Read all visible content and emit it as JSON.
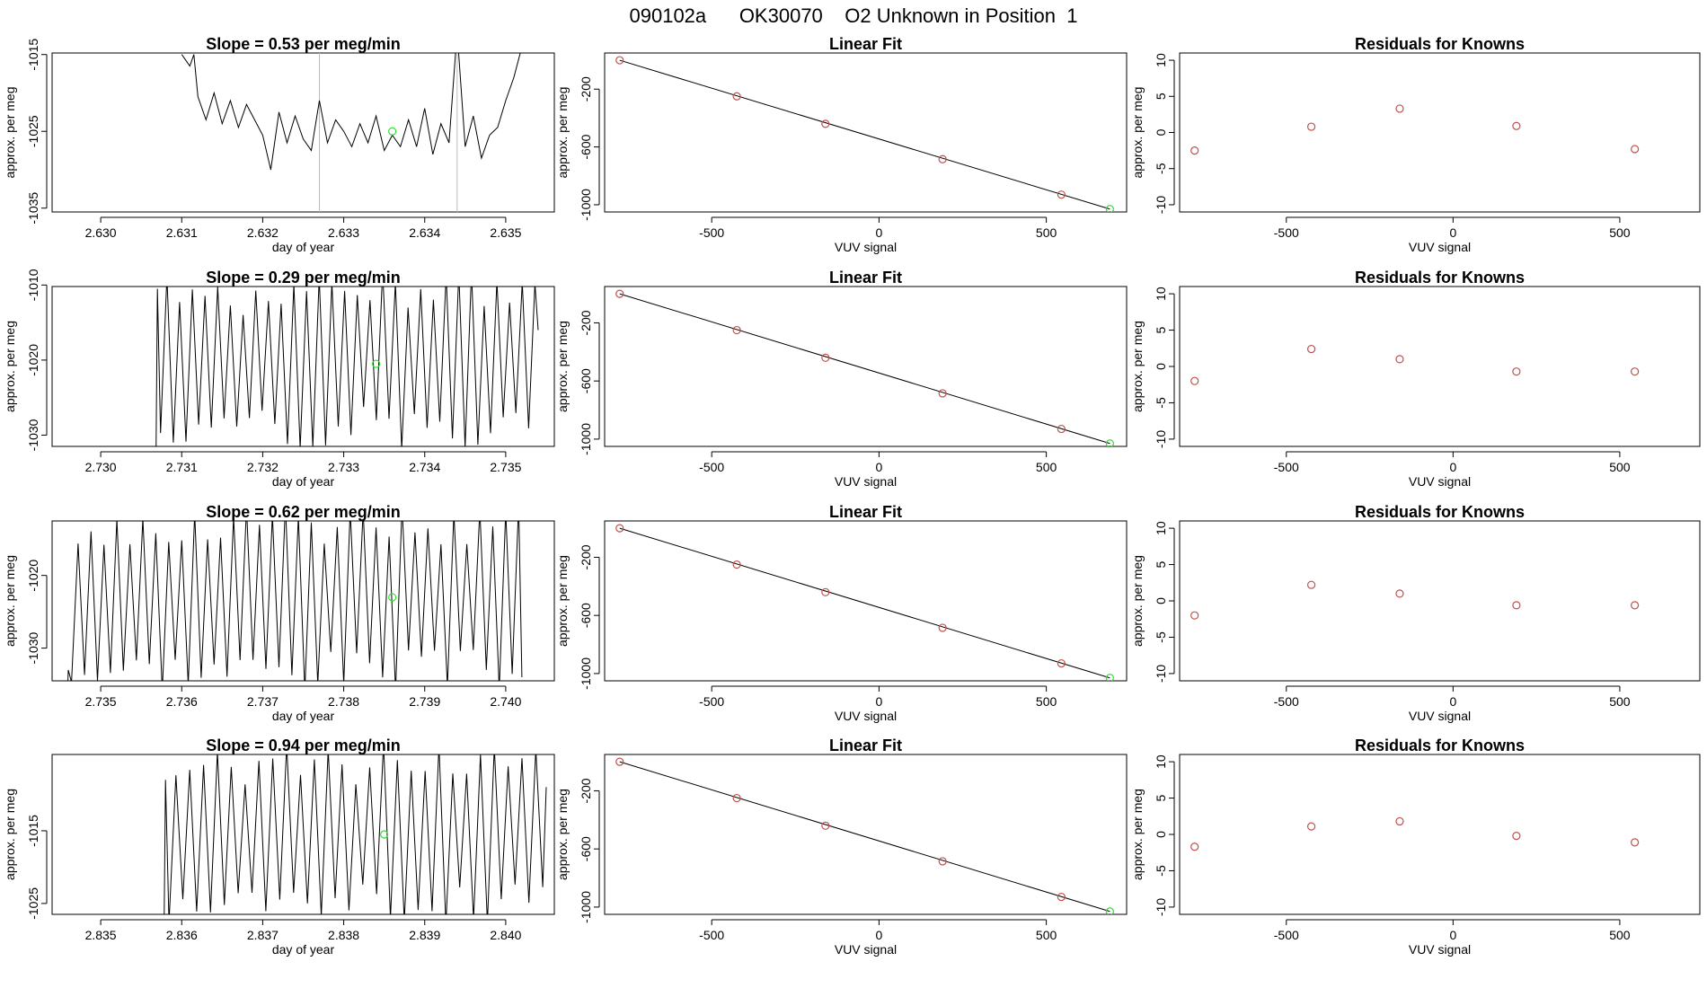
{
  "page_title": "090102a      OK30070    O2 Unknown in Position  1",
  "colors": {
    "ink": "#000000",
    "known": "#c0504d",
    "unknown": "#33dd33",
    "guide": "#bbbbbb"
  },
  "chart_data": [
    {
      "type": "line",
      "row": 1,
      "panel": "trace",
      "title": "Slope =  0.53  per meg/min",
      "xlabel": "day of year",
      "ylabel": "approx. per meg",
      "xlim": [
        2.6294,
        2.6356
      ],
      "ylim": [
        -1035.5,
        -1014.8
      ],
      "xticks": [
        2.63,
        2.631,
        2.632,
        2.633,
        2.634,
        2.635
      ],
      "xtick_labels": [
        "2.630",
        "2.631",
        "2.632",
        "2.633",
        "2.634",
        "2.635"
      ],
      "yticks": [
        -1015,
        -1025,
        -1035
      ],
      "ytick_labels": [
        "-1015",
        "-1025",
        "-1035"
      ],
      "vlines": [
        2.6327,
        2.6344
      ],
      "x": [
        2.631,
        2.6311,
        2.63115,
        2.6312,
        2.6313,
        2.6314,
        2.6315,
        2.6316,
        2.6317,
        2.6318,
        2.6319,
        2.632,
        2.6321,
        2.6322,
        2.6323,
        2.6324,
        2.6325,
        2.6326,
        2.6327,
        2.6328,
        2.6329,
        2.633,
        2.6331,
        2.6332,
        2.6333,
        2.6334,
        2.6335,
        2.6336,
        2.6337,
        2.6338,
        2.6339,
        2.634,
        2.6341,
        2.6342,
        2.6343,
        2.6344,
        2.6345,
        2.6346,
        2.6347,
        2.6348,
        2.6349,
        2.635,
        2.6351,
        2.6352
      ],
      "y": [
        -1015.0,
        -1016.5,
        -1015.0,
        -1020.5,
        -1023.5,
        -1020.0,
        -1024.0,
        -1021.0,
        -1024.5,
        -1021.5,
        -1023.5,
        -1025.5,
        -1030.0,
        -1022.5,
        -1026.5,
        -1023.0,
        -1026.0,
        -1027.5,
        -1021.0,
        -1026.5,
        -1023.5,
        -1025.0,
        -1027.0,
        -1024.0,
        -1026.5,
        -1023.0,
        -1027.5,
        -1025.5,
        -1027.0,
        -1023.5,
        -1027.0,
        -1022.0,
        -1028.0,
        -1024.0,
        -1026.5,
        -1012.0,
        -1027.0,
        -1023.0,
        -1028.5,
        -1025.5,
        -1024.5,
        -1021.0,
        -1018.0,
        -1014.0
      ],
      "highlight": [
        2.6336,
        -1025.0
      ]
    },
    {
      "type": "scatter",
      "row": 1,
      "panel": "fit",
      "title": "Linear Fit",
      "xlabel": "VUV signal",
      "ylabel": "approx. per meg",
      "xlim": [
        -820,
        740
      ],
      "ylim": [
        -1050,
        50
      ],
      "xticks": [
        -500,
        0,
        500
      ],
      "xtick_labels": [
        "-500",
        "0",
        "500"
      ],
      "yticks": [
        -200,
        -600,
        -1000
      ],
      "ytick_labels": [
        "-200",
        "-600",
        "-1000"
      ],
      "line": [
        [
          -775,
          0
        ],
        [
          690,
          -1030
        ]
      ],
      "known_x": [
        -775,
        -425,
        -160,
        190,
        545
      ],
      "known_y": [
        0,
        -250,
        -440,
        -685,
        -930
      ],
      "unknown": [
        690,
        -1030
      ]
    },
    {
      "type": "scatter",
      "row": 1,
      "panel": "residuals",
      "title": "Residuals for Knowns",
      "xlabel": "VUV signal",
      "ylabel": "approx. per meg",
      "xlim": [
        -820,
        740
      ],
      "ylim": [
        -11,
        11
      ],
      "xticks": [
        -500,
        0,
        500
      ],
      "xtick_labels": [
        "-500",
        "0",
        "500"
      ],
      "yticks": [
        10,
        5,
        0,
        -5,
        -10
      ],
      "ytick_labels": [
        "10",
        "5",
        "0",
        "-5",
        "-10"
      ],
      "x": [
        -775,
        -425,
        -160,
        190,
        545
      ],
      "y": [
        -2.5,
        0.8,
        3.3,
        0.9,
        -2.3
      ]
    },
    {
      "type": "line",
      "row": 2,
      "panel": "trace",
      "title": "Slope =  0.29  per meg/min",
      "xlabel": "day of year",
      "ylabel": "approx. per meg",
      "xlim": [
        2.7294,
        2.7356
      ],
      "ylim": [
        -1031.5,
        -1010.2
      ],
      "xticks": [
        2.73,
        2.731,
        2.732,
        2.733,
        2.734,
        2.735
      ],
      "xtick_labels": [
        "2.730",
        "2.731",
        "2.732",
        "2.733",
        "2.734",
        "2.735"
      ],
      "yticks": [
        -1010,
        -1020,
        -1030
      ],
      "ytick_labels": [
        "-1010",
        "-1020",
        "-1030"
      ],
      "vlines": [],
      "osc": {
        "x_start": 2.7307,
        "x_end": 2.7354,
        "n": 60,
        "min": -1032,
        "max": -1008,
        "start_y": -1010.5,
        "end_y": -1016.0
      },
      "highlight": [
        2.7334,
        -1020.5
      ]
    },
    {
      "type": "scatter",
      "row": 2,
      "panel": "fit",
      "title": "Linear Fit",
      "xlabel": "VUV signal",
      "ylabel": "approx. per meg",
      "xlim": [
        -820,
        740
      ],
      "ylim": [
        -1050,
        50
      ],
      "xticks": [
        -500,
        0,
        500
      ],
      "xtick_labels": [
        "-500",
        "0",
        "500"
      ],
      "yticks": [
        -200,
        -600,
        -1000
      ],
      "ytick_labels": [
        "-200",
        "-600",
        "-1000"
      ],
      "line": [
        [
          -775,
          0
        ],
        [
          690,
          -1030
        ]
      ],
      "known_x": [
        -775,
        -425,
        -160,
        190,
        545
      ],
      "known_y": [
        0,
        -250,
        -440,
        -685,
        -930
      ],
      "unknown": [
        690,
        -1030
      ]
    },
    {
      "type": "scatter",
      "row": 2,
      "panel": "residuals",
      "title": "Residuals for Knowns",
      "xlabel": "VUV signal",
      "ylabel": "approx. per meg",
      "xlim": [
        -820,
        740
      ],
      "ylim": [
        -11,
        11
      ],
      "xticks": [
        -500,
        0,
        500
      ],
      "xtick_labels": [
        "-500",
        "0",
        "500"
      ],
      "yticks": [
        10,
        5,
        0,
        -5,
        -10
      ],
      "ytick_labels": [
        "10",
        "5",
        "0",
        "-5",
        "-10"
      ],
      "x": [
        -775,
        -425,
        -160,
        190,
        545
      ],
      "y": [
        -2.0,
        2.4,
        1.0,
        -0.7,
        -0.7
      ]
    },
    {
      "type": "line",
      "row": 3,
      "panel": "trace",
      "title": "Slope =  0.62  per meg/min",
      "xlabel": "day of year",
      "ylabel": "approx. per meg",
      "xlim": [
        2.7344,
        2.7406
      ],
      "ylim": [
        -1034.5,
        -1012.5
      ],
      "xticks": [
        2.735,
        2.736,
        2.737,
        2.738,
        2.739,
        2.74
      ],
      "xtick_labels": [
        "2.735",
        "2.736",
        "2.737",
        "2.738",
        "2.739",
        "2.740"
      ],
      "yticks": [
        -1020,
        -1030
      ],
      "ytick_labels": [
        "-1020",
        "-1030"
      ],
      "vlines": [],
      "osc": {
        "x_start": 2.7346,
        "x_end": 2.7402,
        "n": 70,
        "min": -1036,
        "max": -1010,
        "start_y": -1033.0,
        "end_y": -1034.0
      },
      "highlight": [
        2.7386,
        -1023.0
      ]
    },
    {
      "type": "scatter",
      "row": 3,
      "panel": "fit",
      "title": "Linear Fit",
      "xlabel": "VUV signal",
      "ylabel": "approx. per meg",
      "xlim": [
        -820,
        740
      ],
      "ylim": [
        -1050,
        50
      ],
      "xticks": [
        -500,
        0,
        500
      ],
      "xtick_labels": [
        "-500",
        "0",
        "500"
      ],
      "yticks": [
        -200,
        -600,
        -1000
      ],
      "ytick_labels": [
        "-200",
        "-600",
        "-1000"
      ],
      "line": [
        [
          -775,
          0
        ],
        [
          690,
          -1030
        ]
      ],
      "known_x": [
        -775,
        -425,
        -160,
        190,
        545
      ],
      "known_y": [
        0,
        -250,
        -440,
        -685,
        -930
      ],
      "unknown": [
        690,
        -1030
      ]
    },
    {
      "type": "scatter",
      "row": 3,
      "panel": "residuals",
      "title": "Residuals for Knowns",
      "xlabel": "VUV signal",
      "ylabel": "approx. per meg",
      "xlim": [
        -820,
        740
      ],
      "ylim": [
        -11,
        11
      ],
      "xticks": [
        -500,
        0,
        500
      ],
      "xtick_labels": [
        "-500",
        "0",
        "500"
      ],
      "yticks": [
        10,
        5,
        0,
        -5,
        -10
      ],
      "ytick_labels": [
        "10",
        "5",
        "0",
        "-5",
        "-10"
      ],
      "x": [
        -775,
        -425,
        -160,
        190,
        545
      ],
      "y": [
        -2.0,
        2.2,
        1.0,
        -0.6,
        -0.6
      ]
    },
    {
      "type": "line",
      "row": 4,
      "panel": "trace",
      "title": "Slope =  0.94  per meg/min",
      "xlabel": "day of year",
      "ylabel": "approx. per meg",
      "xlim": [
        2.8344,
        2.8406
      ],
      "ylim": [
        -1026.5,
        -1004.5
      ],
      "xticks": [
        2.835,
        2.836,
        2.837,
        2.838,
        2.839,
        2.84
      ],
      "xtick_labels": [
        "2.835",
        "2.836",
        "2.837",
        "2.838",
        "2.839",
        "2.840"
      ],
      "yticks": [
        -1015,
        -1025
      ],
      "ytick_labels": [
        "-1015",
        "-1025"
      ],
      "vlines": [],
      "osc": {
        "x_start": 2.8358,
        "x_end": 2.8405,
        "n": 55,
        "min": -1028,
        "max": -1003,
        "start_y": -1008.0,
        "end_y": -1009.0
      },
      "highlight": [
        2.8385,
        -1015.5
      ]
    },
    {
      "type": "scatter",
      "row": 4,
      "panel": "fit",
      "title": "Linear Fit",
      "xlabel": "VUV signal",
      "ylabel": "approx. per meg",
      "xlim": [
        -820,
        740
      ],
      "ylim": [
        -1050,
        50
      ],
      "xticks": [
        -500,
        0,
        500
      ],
      "xtick_labels": [
        "-500",
        "0",
        "500"
      ],
      "yticks": [
        -200,
        -600,
        -1000
      ],
      "ytick_labels": [
        "-200",
        "-600",
        "-1000"
      ],
      "line": [
        [
          -775,
          0
        ],
        [
          690,
          -1030
        ]
      ],
      "known_x": [
        -775,
        -425,
        -160,
        190,
        545
      ],
      "known_y": [
        0,
        -250,
        -440,
        -685,
        -930
      ],
      "unknown": [
        690,
        -1030
      ]
    },
    {
      "type": "scatter",
      "row": 4,
      "panel": "residuals",
      "title": "Residuals for Knowns",
      "xlabel": "VUV signal",
      "ylabel": "approx. per meg",
      "xlim": [
        -820,
        740
      ],
      "ylim": [
        -11,
        11
      ],
      "xticks": [
        -500,
        0,
        500
      ],
      "xtick_labels": [
        "-500",
        "0",
        "500"
      ],
      "yticks": [
        10,
        5,
        0,
        -5,
        -10
      ],
      "ytick_labels": [
        "10",
        "5",
        "0",
        "-5",
        "-10"
      ],
      "x": [
        -775,
        -425,
        -160,
        190,
        545
      ],
      "y": [
        -1.7,
        1.1,
        1.8,
        -0.2,
        -1.1
      ]
    }
  ]
}
